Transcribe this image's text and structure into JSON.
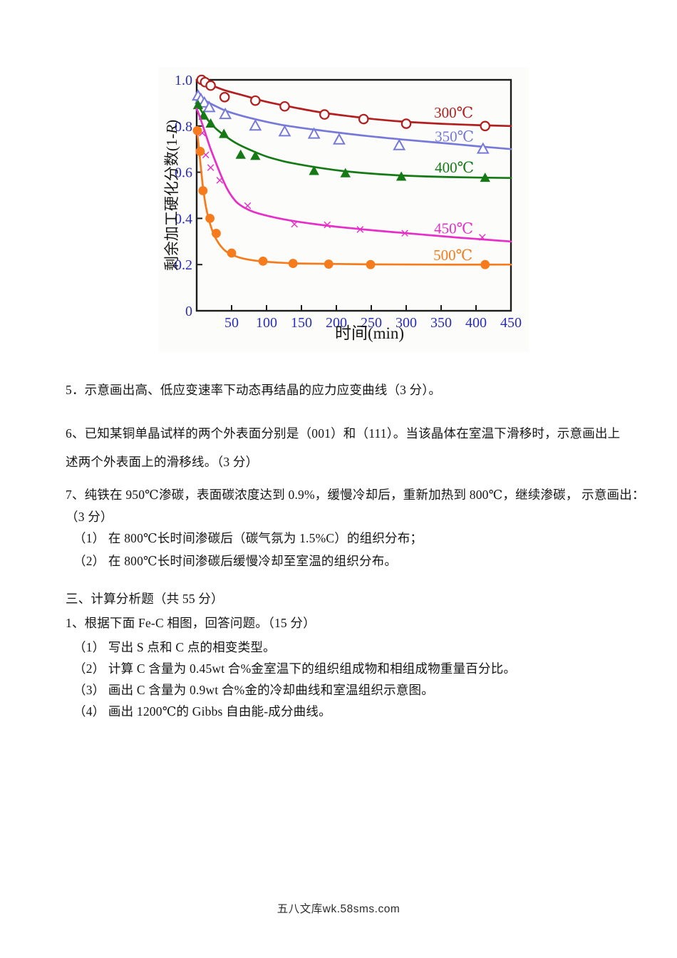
{
  "content": {
    "lines": [
      {
        "id": "q5",
        "text": "5．示意画出高、低应变速率下动态再结晶的应力应变曲线（3 分）。"
      },
      {
        "id": "q6-l1",
        "text": "6、已知某铜单晶试样的两个外表面分别是（001）和（111）。当该晶体在室温下滑移时，示意画出上"
      },
      {
        "id": "q6-l2",
        "text": "述两个外表面上的滑移线。（3 分）"
      },
      {
        "id": "q7-l1",
        "text": "7、纯铁在 950℃渗碳，表面碳浓度达到 0.9%，缓慢冷却后，重新加热到 800℃，继续渗碳， 示意画出："
      },
      {
        "id": "q7-l2",
        "text": "（3 分）"
      },
      {
        "id": "q7-i1",
        "text": "（1） 在 800℃长时间渗碳后（碳气氛为 1.5%C）的组织分布；"
      },
      {
        "id": "q7-i2",
        "text": "（2） 在 800℃长时间渗碳后缓慢冷却至室温的组织分布。"
      },
      {
        "id": "sec3",
        "text": "三、计算分析题（共 55 分）"
      },
      {
        "id": "q1",
        "text": "1、根据下面 Fe-C 相图，回答问题。（15 分）"
      },
      {
        "id": "q1-i1",
        "text": "（1） 写出 S 点和 C 点的相变类型。"
      },
      {
        "id": "q1-i2",
        "text": "（2） 计算 C 含量为 0.45wt 合%金室温下的组织组成物和相组成物重量百分比。"
      },
      {
        "id": "q1-i3",
        "text": "（3） 画出 C 含量为 0.9wt 合%金的冷却曲线和室温组织示意图。"
      },
      {
        "id": "q1-i4",
        "text": "（4） 画出 1200℃的 Gibbs 自由能-成分曲线。"
      }
    ],
    "footer": "五八文库wk.58sms.com"
  },
  "chart_data": {
    "type": "line",
    "title": "",
    "xlabel": "时间(min)",
    "ylabel": "剩余加工硬化分数(1-R)",
    "xlim": [
      0,
      450
    ],
    "ylim": [
      0,
      1.0
    ],
    "x_ticks": [
      50,
      100,
      150,
      200,
      250,
      300,
      350,
      400,
      450
    ],
    "y_ticks": [
      0,
      0.2,
      0.4,
      0.6,
      0.8,
      1.0
    ],
    "y_tick_labels": [
      "0",
      "0.2",
      "0.4",
      "0.6",
      "0.8",
      "1.0"
    ],
    "grid": false,
    "legend_position": "inline-right",
    "tick_label_color": "#2b2db8",
    "axis_color": "#1c1c1c",
    "series": [
      {
        "name": "300℃",
        "color": "#b21f1f",
        "marker": "circle-open",
        "label_at": [
          368,
          0.858
        ],
        "points": [
          [
            7,
            1.0
          ],
          [
            12,
            0.99
          ],
          [
            20,
            0.975
          ],
          [
            40,
            0.925
          ],
          [
            84,
            0.91
          ],
          [
            126,
            0.885
          ],
          [
            183,
            0.85
          ],
          [
            239,
            0.83
          ],
          [
            300,
            0.81
          ],
          [
            413,
            0.8
          ]
        ],
        "curve": [
          [
            0,
            1.0
          ],
          [
            20,
            0.978
          ],
          [
            40,
            0.955
          ],
          [
            70,
            0.93
          ],
          [
            100,
            0.905
          ],
          [
            140,
            0.88
          ],
          [
            180,
            0.858
          ],
          [
            220,
            0.842
          ],
          [
            260,
            0.828
          ],
          [
            300,
            0.818
          ],
          [
            350,
            0.81
          ],
          [
            400,
            0.804
          ],
          [
            450,
            0.8
          ]
        ]
      },
      {
        "name": "350℃",
        "color": "#7779da",
        "marker": "triangle-open",
        "label_at": [
          369,
          0.754
        ],
        "points": [
          [
            2,
            0.93
          ],
          [
            6,
            0.915
          ],
          [
            11,
            0.9
          ],
          [
            18,
            0.88
          ],
          [
            41,
            0.85
          ],
          [
            84,
            0.8
          ],
          [
            126,
            0.775
          ],
          [
            168,
            0.765
          ],
          [
            204,
            0.74
          ],
          [
            290,
            0.715
          ],
          [
            410,
            0.7
          ]
        ],
        "curve": [
          [
            0,
            0.94
          ],
          [
            10,
            0.915
          ],
          [
            20,
            0.897
          ],
          [
            40,
            0.868
          ],
          [
            60,
            0.848
          ],
          [
            90,
            0.825
          ],
          [
            120,
            0.806
          ],
          [
            150,
            0.792
          ],
          [
            180,
            0.78
          ],
          [
            220,
            0.765
          ],
          [
            260,
            0.752
          ],
          [
            300,
            0.74
          ],
          [
            350,
            0.727
          ],
          [
            400,
            0.713
          ],
          [
            450,
            0.7
          ]
        ]
      },
      {
        "name": "400℃",
        "color": "#157a15",
        "marker": "triangle-fill",
        "label_at": [
          369,
          0.621
        ],
        "points": [
          [
            2,
            0.89
          ],
          [
            10,
            0.845
          ],
          [
            20,
            0.81
          ],
          [
            39,
            0.765
          ],
          [
            63,
            0.675
          ],
          [
            84,
            0.67
          ],
          [
            168,
            0.605
          ],
          [
            213,
            0.595
          ],
          [
            293,
            0.58
          ],
          [
            413,
            0.575
          ]
        ],
        "curve": [
          [
            0,
            0.9
          ],
          [
            10,
            0.85
          ],
          [
            20,
            0.812
          ],
          [
            30,
            0.782
          ],
          [
            45,
            0.748
          ],
          [
            60,
            0.72
          ],
          [
            80,
            0.692
          ],
          [
            100,
            0.668
          ],
          [
            125,
            0.647
          ],
          [
            150,
            0.632
          ],
          [
            180,
            0.617
          ],
          [
            210,
            0.605
          ],
          [
            250,
            0.594
          ],
          [
            300,
            0.585
          ],
          [
            360,
            0.579
          ],
          [
            450,
            0.575
          ]
        ]
      },
      {
        "name": "450℃",
        "color": "#e62ec8",
        "marker": "x",
        "label_at": [
          368,
          0.356
        ],
        "points": [
          [
            8,
            0.77
          ],
          [
            13,
            0.675
          ],
          [
            20,
            0.62
          ],
          [
            33,
            0.565
          ],
          [
            73,
            0.455
          ],
          [
            140,
            0.375
          ],
          [
            187,
            0.372
          ],
          [
            234,
            0.352
          ],
          [
            298,
            0.336
          ],
          [
            409,
            0.318
          ]
        ],
        "curve": [
          [
            0,
            0.875
          ],
          [
            5,
            0.835
          ],
          [
            10,
            0.79
          ],
          [
            15,
            0.745
          ],
          [
            20,
            0.7
          ],
          [
            27,
            0.645
          ],
          [
            35,
            0.585
          ],
          [
            43,
            0.532
          ],
          [
            50,
            0.497
          ],
          [
            58,
            0.468
          ],
          [
            68,
            0.447
          ],
          [
            80,
            0.43
          ],
          [
            95,
            0.416
          ],
          [
            115,
            0.402
          ],
          [
            140,
            0.388
          ],
          [
            170,
            0.375
          ],
          [
            200,
            0.364
          ],
          [
            240,
            0.352
          ],
          [
            280,
            0.341
          ],
          [
            320,
            0.331
          ],
          [
            370,
            0.318
          ],
          [
            410,
            0.309
          ],
          [
            450,
            0.3
          ]
        ]
      },
      {
        "name": "500℃",
        "color": "#f57b1d",
        "marker": "circle-fill",
        "label_at": [
          367,
          0.241
        ],
        "points": [
          [
            1,
            0.78
          ],
          [
            5,
            0.69
          ],
          [
            9,
            0.52
          ],
          [
            19,
            0.4
          ],
          [
            28,
            0.335
          ],
          [
            50,
            0.25
          ],
          [
            95,
            0.215
          ],
          [
            138,
            0.205
          ],
          [
            189,
            0.202
          ],
          [
            249,
            0.2
          ],
          [
            413,
            0.2
          ]
        ],
        "curve": [
          [
            0,
            0.79
          ],
          [
            3,
            0.71
          ],
          [
            6,
            0.62
          ],
          [
            9,
            0.535
          ],
          [
            13,
            0.455
          ],
          [
            17,
            0.4
          ],
          [
            22,
            0.35
          ],
          [
            28,
            0.31
          ],
          [
            35,
            0.278
          ],
          [
            43,
            0.255
          ],
          [
            55,
            0.237
          ],
          [
            70,
            0.224
          ],
          [
            90,
            0.215
          ],
          [
            115,
            0.209
          ],
          [
            145,
            0.205
          ],
          [
            190,
            0.203
          ],
          [
            250,
            0.201
          ],
          [
            330,
            0.2
          ],
          [
            450,
            0.2
          ]
        ]
      }
    ]
  }
}
